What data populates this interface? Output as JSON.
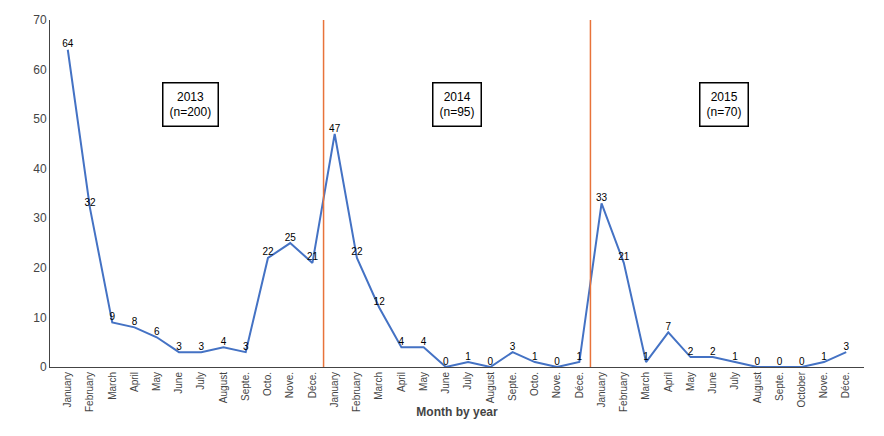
{
  "chart_data": {
    "type": "line",
    "categories": [
      "January",
      "February",
      "March",
      "April",
      "May",
      "June",
      "July",
      "August",
      "Septe.",
      "Octo.",
      "Nove.",
      "Déce.",
      "January",
      "February",
      "March",
      "April",
      "May",
      "June",
      "July",
      "August",
      "Septe.",
      "Octo.",
      "Nove.",
      "Déce.",
      "January",
      "February",
      "March",
      "April",
      "May",
      "June",
      "July",
      "August",
      "Septe.",
      "October",
      "Nove.",
      "Déce."
    ],
    "values": [
      64,
      32,
      9,
      8,
      6,
      3,
      3,
      4,
      3,
      22,
      25,
      21,
      47,
      22,
      12,
      4,
      4,
      0,
      1,
      0,
      3,
      1,
      0,
      1,
      33,
      21,
      1,
      7,
      2,
      2,
      1,
      0,
      0,
      0,
      1,
      3
    ],
    "color": "#4472C4",
    "xlabel": "Month by year",
    "ylim": [
      0,
      70
    ],
    "yticks": [
      0,
      10,
      20,
      30,
      40,
      50,
      60,
      70
    ],
    "grid": false,
    "data_labels": true,
    "annotations": [
      "2013\n(n=200)",
      "2014\n(n=95)",
      "2015\n(n=70)"
    ],
    "separators": {
      "x": [
        11.5,
        23.5
      ],
      "color": "#E8733A"
    }
  }
}
